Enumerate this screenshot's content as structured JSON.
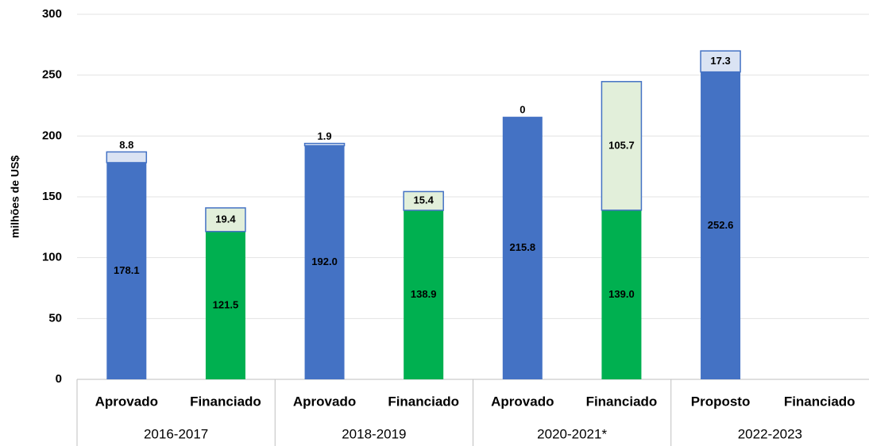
{
  "chart_data": {
    "type": "stacked-bar",
    "y_label": "milhões de US$",
    "categories": [
      "Aprovado",
      "Financiado",
      "Aprovado",
      "Financiado",
      "Aprovado",
      "Financiado",
      "Proposto",
      "Financiado"
    ],
    "groups": [
      {
        "label": "2016-2017",
        "span": 2
      },
      {
        "label": "2018-2019",
        "span": 2
      },
      {
        "label": "2020-2021*",
        "span": 2
      },
      {
        "label": "2022-2023",
        "span": 2
      }
    ],
    "series": [
      {
        "colors": [
          "#4472c4",
          "#00b050",
          "#4472c4",
          "#00b050",
          "#4472c4",
          "#00b050",
          "#4472c4",
          null
        ],
        "values": [
          178.1,
          121.5,
          192.0,
          138.9,
          215.8,
          139.0,
          252.6,
          null
        ],
        "value_labels": [
          "178.1",
          "121.5",
          "192.0",
          "138.9",
          "215.8",
          "139.0",
          "252.6",
          null
        ]
      },
      {
        "colors": [
          "#dae3f3",
          "#e2efda",
          "#dae3f3",
          "#e2efda",
          "#dae3f3",
          "#e2efda",
          "#dae3f3",
          null
        ],
        "values": [
          8.8,
          19.4,
          1.9,
          15.4,
          0,
          105.7,
          17.3,
          null
        ]
      }
    ],
    "outline": "#4472c4",
    "ylim": [
      0,
      300
    ],
    "yticks": [
      0,
      50,
      100,
      150,
      200,
      250,
      300
    ],
    "grid": true
  }
}
